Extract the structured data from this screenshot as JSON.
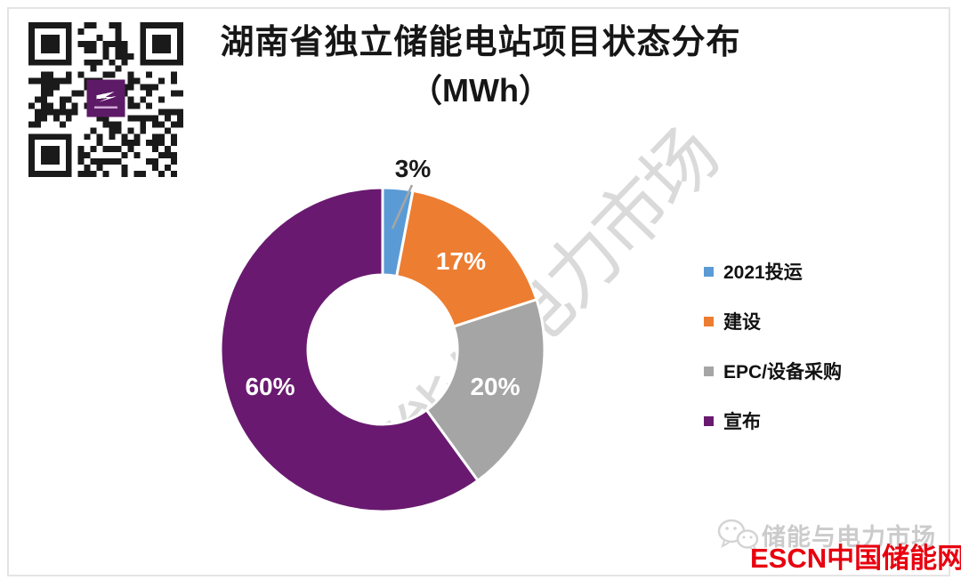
{
  "title": {
    "line1": "湖南省独立储能电站项目状态分布",
    "line2": "（MWh）"
  },
  "chart_data": {
    "type": "pie",
    "subtype": "donut",
    "title": "湖南省独立储能电站项目状态分布（MWh）",
    "unit": "MWh",
    "direction": "clockwise",
    "start_angle_deg": 0,
    "legend_position": "right",
    "slices": [
      {
        "name": "2021投运",
        "value_pct": 3,
        "label": "3%",
        "color": "#5B9BD5",
        "label_color": "#1a1a1a",
        "label_placement": "outside"
      },
      {
        "name": "建设",
        "value_pct": 17,
        "label": "17%",
        "color": "#ED7D31",
        "label_color": "#ffffff",
        "label_placement": "inside"
      },
      {
        "name": "EPC/设备采购",
        "value_pct": 20,
        "label": "20%",
        "color": "#A5A5A5",
        "label_color": "#ffffff",
        "label_placement": "inside"
      },
      {
        "name": "宣布",
        "value_pct": 60,
        "label": "60%",
        "color": "#691A70",
        "label_color": "#ffffff",
        "label_placement": "inside"
      }
    ]
  },
  "watermark": {
    "diagonal_text": "储能与电力市场"
  },
  "footer": {
    "wechat_name": "储能与电力市场",
    "site_logo_text": "ESCN中国储能网",
    "logo_color": "#E8000F"
  },
  "qr": {
    "center_logo_color": "#5D1A66"
  }
}
